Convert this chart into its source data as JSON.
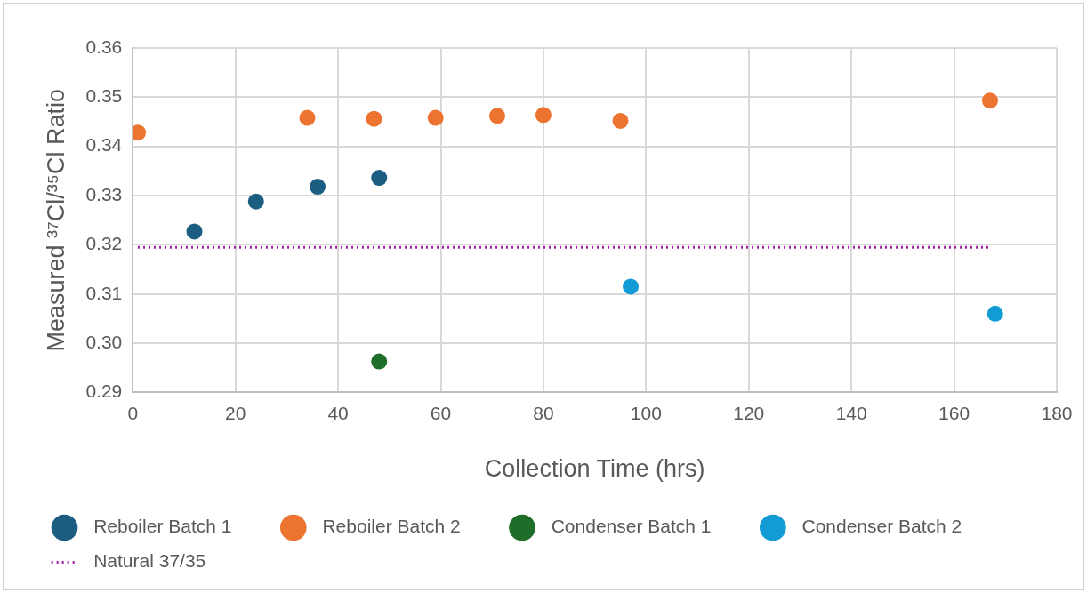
{
  "chart_data": {
    "type": "scatter",
    "xlabel": "Collection Time (hrs)",
    "ylabel": "Measured ³⁷Cl/³⁵Cl Ratio",
    "xlim": [
      0,
      180
    ],
    "xticks": [
      0,
      20,
      40,
      60,
      80,
      100,
      120,
      140,
      160,
      180
    ],
    "ylim": [
      0.29,
      0.36
    ],
    "yticks": [
      0.29,
      {
        "value": 0.3,
        "label": "0.30"
      },
      0.31,
      0.32,
      0.33,
      0.34,
      0.35,
      0.36
    ],
    "grid": true,
    "legend": "bottom",
    "marker": "circle",
    "series": [
      {
        "name": "Reboiler Batch 1",
        "color": "#1b5e82",
        "x": [
          12,
          24,
          36,
          48
        ],
        "values": [
          0.3227,
          0.3288,
          0.3318,
          0.3336
        ]
      },
      {
        "name": "Reboiler Batch 2",
        "color": "#ed7330",
        "x": [
          1,
          34,
          47,
          59,
          71,
          80,
          95,
          167
        ],
        "values": [
          0.3428,
          0.3458,
          0.3456,
          0.3458,
          0.3462,
          0.3464,
          0.3452,
          0.3493
        ]
      },
      {
        "name": "Condenser Batch 1",
        "color": "#1e6e2a",
        "x": [
          48
        ],
        "values": [
          0.2963
        ]
      },
      {
        "name": "Condenser Batch 2",
        "color": "#139bd6",
        "x": [
          97,
          168
        ],
        "values": [
          0.3115,
          0.306
        ]
      },
      {
        "name": "Natural 37/35",
        "type": "line",
        "color": "#a020a0",
        "line_style": "dotted",
        "marker": "none",
        "x": [
          1,
          167
        ],
        "values": [
          0.3195,
          0.3195
        ]
      }
    ]
  }
}
